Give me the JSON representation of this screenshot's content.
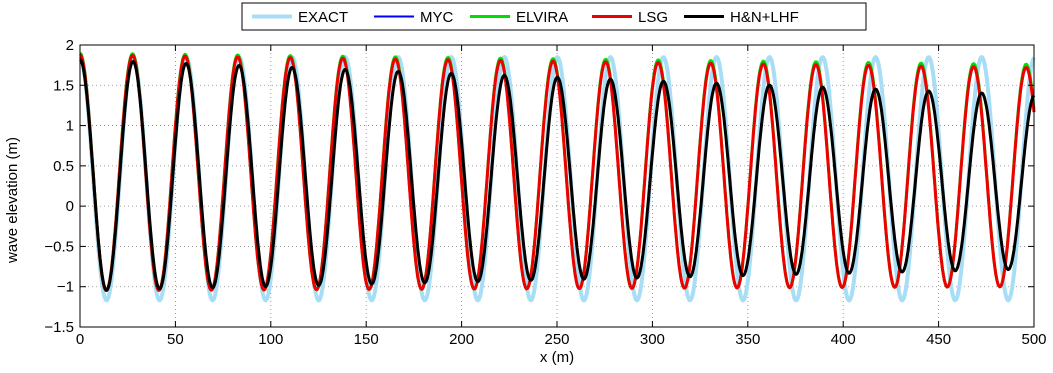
{
  "chart_data": {
    "type": "line",
    "xlabel": "x (m)",
    "ylabel": "wave elevation (m)",
    "xlim": [
      0,
      500
    ],
    "ylim": [
      -1.5,
      2
    ],
    "xticks": [
      0,
      50,
      100,
      150,
      200,
      250,
      300,
      350,
      400,
      450,
      500
    ],
    "yticks": [
      -1.5,
      -1,
      -0.5,
      0,
      0.5,
      1,
      1.5,
      2
    ],
    "xtick_labels": [
      "0",
      "50",
      "100",
      "150",
      "200",
      "250",
      "300",
      "350",
      "400",
      "450",
      "500"
    ],
    "ytick_labels": [
      "−1.5",
      "−1",
      "−0.5",
      "0",
      "0.5",
      "1",
      "1.5",
      "2"
    ],
    "grid": true,
    "legend_position": "top-center",
    "series": [
      {
        "name": "EXACT",
        "color": "#a8def5",
        "wavelength": 27.8,
        "phase": 0.0,
        "crest": [
          1.85,
          1.85
        ],
        "trough": [
          -1.17,
          -1.17
        ]
      },
      {
        "name": "MYC",
        "color": "#0000ff",
        "wavelength": 27.55,
        "phase": 0.0,
        "crest": [
          1.88,
          1.75
        ],
        "trough": [
          -1.05,
          -1.0
        ]
      },
      {
        "name": "ELVIRA",
        "color": "#00dd00",
        "wavelength": 27.55,
        "phase": 0.0,
        "crest": [
          1.9,
          1.76
        ],
        "trough": [
          -1.05,
          -1.0
        ]
      },
      {
        "name": "LSG",
        "color": "#ee0000",
        "wavelength": 27.55,
        "phase": 0.0,
        "crest": [
          1.88,
          1.72
        ],
        "trough": [
          -1.05,
          -1.0
        ]
      },
      {
        "name": "H&N+LHF",
        "color": "#000000",
        "wavelength": 27.8,
        "phase": 0.0,
        "crest": [
          1.82,
          1.38
        ],
        "trough": [
          -1.05,
          -0.78
        ]
      }
    ]
  }
}
